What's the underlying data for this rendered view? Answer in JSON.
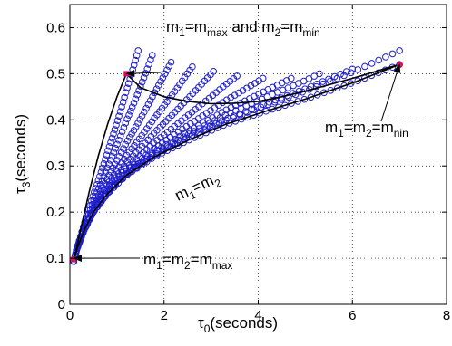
{
  "chart_data": {
    "type": "scatter",
    "xlim": [
      0,
      8
    ],
    "ylim": [
      0,
      0.65
    ],
    "x_ticks": [
      "0",
      "2",
      "4",
      "6",
      "8"
    ],
    "y_ticks": [
      "0",
      "0.1",
      "0.2",
      "0.3",
      "0.4",
      "0.5",
      "0.6"
    ],
    "grid": "dotted",
    "marker_color": "#1f1fc8",
    "curve_color": "#000000",
    "endpoint_color": "#d4145a",
    "xlabel": {
      "base": "τ",
      "sub": "0",
      "rest": "(seconds)"
    },
    "ylabel": {
      "base": "τ",
      "sub": "3",
      "rest": "(seconds)"
    },
    "curves": [
      {
        "id": "equal-mass",
        "x": [
          0.08,
          0.15,
          0.3,
          0.5,
          0.8,
          1.2,
          1.8,
          2.5,
          3.3,
          4.2,
          5.0,
          6.0,
          7.0
        ],
        "y": [
          0.093,
          0.12,
          0.16,
          0.2,
          0.24,
          0.28,
          0.32,
          0.355,
          0.39,
          0.42,
          0.445,
          0.48,
          0.52
        ]
      },
      {
        "id": "m1-max",
        "x": [
          0.08,
          0.2,
          0.4,
          0.6,
          0.8,
          1.0,
          1.2
        ],
        "y": [
          0.093,
          0.15,
          0.24,
          0.32,
          0.39,
          0.45,
          0.5
        ]
      },
      {
        "id": "m2-min",
        "x": [
          1.2,
          1.5,
          2.0,
          2.5,
          3.0,
          3.5,
          4.0,
          4.5,
          5.0,
          5.5,
          6.0,
          6.5,
          7.0
        ],
        "y": [
          0.5,
          0.47,
          0.45,
          0.44,
          0.435,
          0.436,
          0.44,
          0.45,
          0.462,
          0.476,
          0.49,
          0.505,
          0.52
        ]
      }
    ],
    "endpoints": [
      {
        "x": 0.07,
        "y": 0.097
      },
      {
        "x": 1.2,
        "y": 0.5
      },
      {
        "x": 7.0,
        "y": 0.52
      }
    ],
    "families": {
      "count": 11,
      "x_start": 0.08,
      "x_step": 0.1,
      "points": 48,
      "ends": [
        [
          1.45,
          0.55
        ],
        [
          1.75,
          0.54
        ],
        [
          2.15,
          0.525
        ],
        [
          2.6,
          0.515
        ],
        [
          3.05,
          0.505
        ],
        [
          3.55,
          0.495
        ],
        [
          4.1,
          0.49
        ],
        [
          4.7,
          0.49
        ],
        [
          5.3,
          0.5
        ],
        [
          6.0,
          0.51
        ],
        [
          7.0,
          0.55
        ]
      ]
    },
    "annotations": [
      {
        "id": "max-min",
        "parts": [
          [
            "m",
            ""
          ],
          [
            "1",
            "sub"
          ],
          [
            "=m",
            ""
          ],
          [
            "max",
            "sub"
          ],
          [
            " and m",
            ""
          ],
          [
            "2",
            "sub"
          ],
          [
            "=m",
            ""
          ],
          [
            "min",
            "sub"
          ]
        ],
        "arrow_to": [
          1.2,
          0.5
        ]
      },
      {
        "id": "nin",
        "parts": [
          [
            "m",
            ""
          ],
          [
            "1",
            "sub"
          ],
          [
            "=m",
            ""
          ],
          [
            "2",
            "sub"
          ],
          [
            "=m",
            ""
          ],
          [
            "nin",
            "sub"
          ]
        ],
        "arrow_to": [
          7.0,
          0.52
        ]
      },
      {
        "id": "equal",
        "parts": [
          [
            "m",
            ""
          ],
          [
            "1",
            "sub"
          ],
          [
            "=m",
            ""
          ],
          [
            "2",
            "sub"
          ]
        ],
        "rotated": true
      },
      {
        "id": "max",
        "parts": [
          [
            "m",
            ""
          ],
          [
            "1",
            "sub"
          ],
          [
            "=m",
            ""
          ],
          [
            "2",
            "sub"
          ],
          [
            "=m",
            ""
          ],
          [
            "max",
            "sub"
          ]
        ],
        "arrow_to": [
          0.08,
          0.1
        ]
      }
    ]
  }
}
